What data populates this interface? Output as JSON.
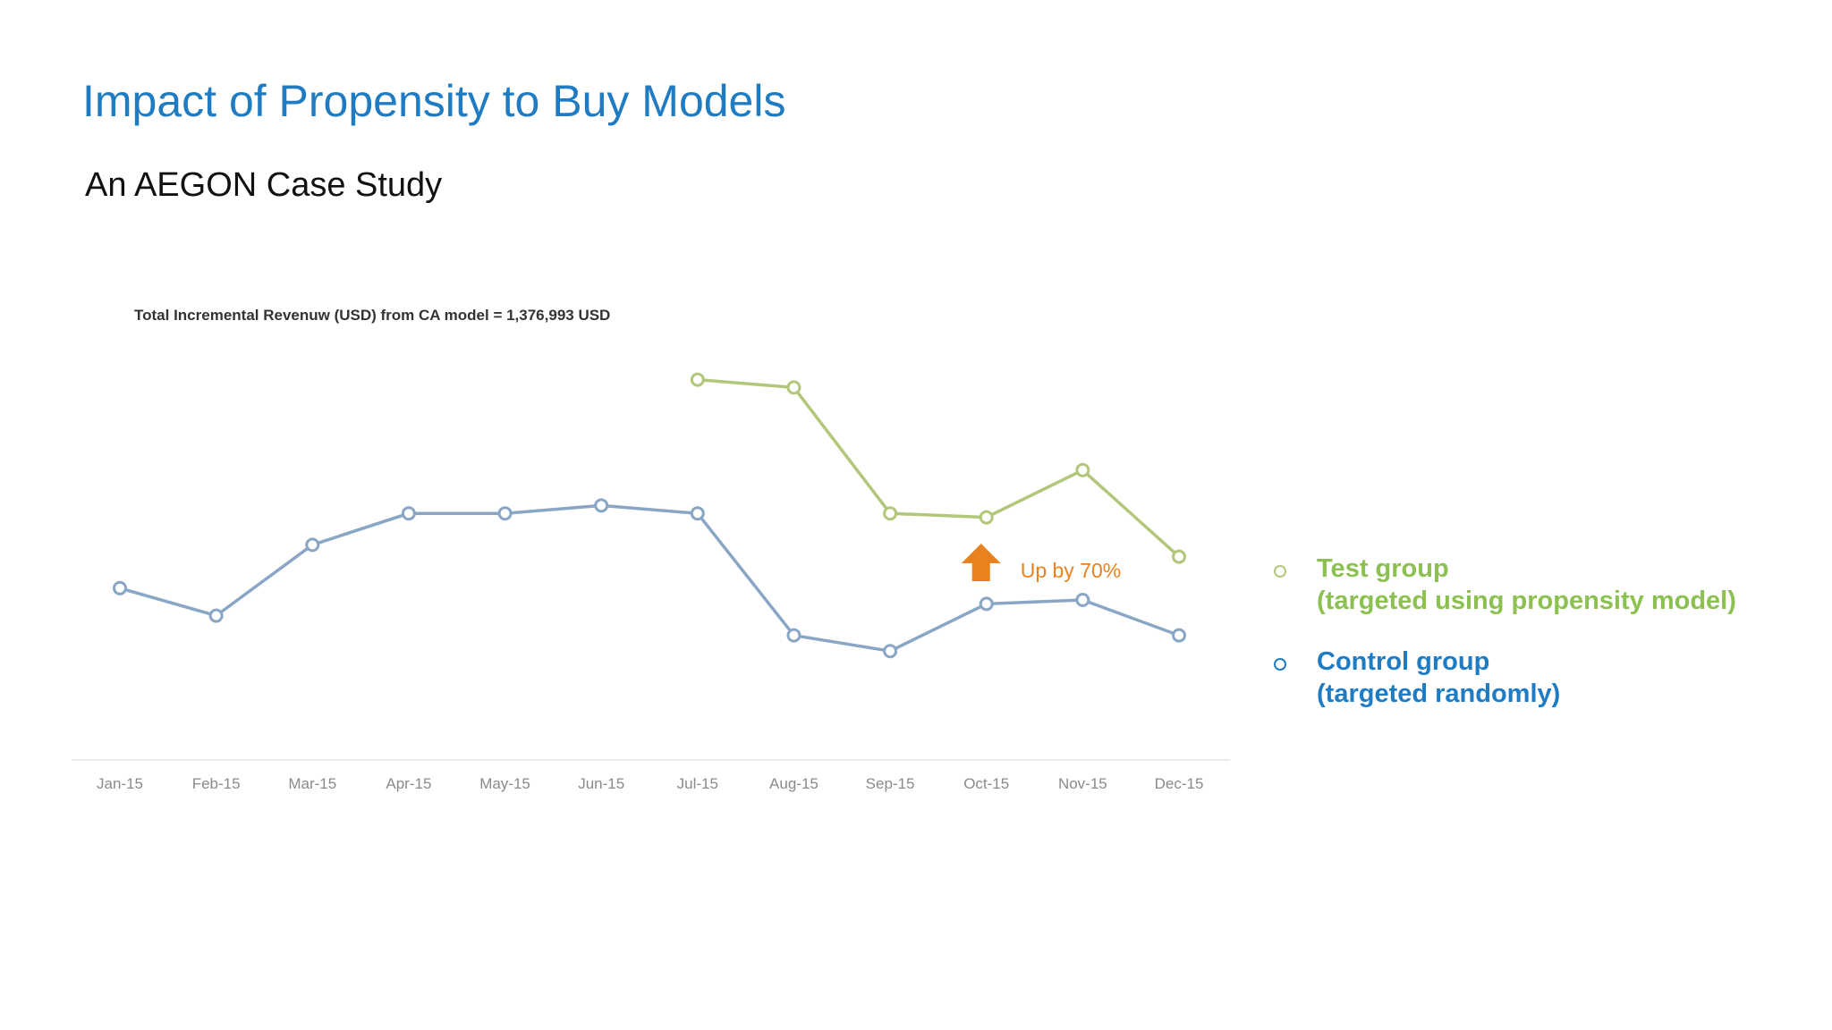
{
  "slide": {
    "title": "Impact of Propensity to Buy Models",
    "subtitle": "An AEGON Case Study"
  },
  "colors": {
    "title": "#1f7cc2",
    "test_series": "#b2c77a",
    "control_series": "#8aa6c6",
    "test_legend": "#8cc152",
    "control_legend": "#1f7cc2",
    "annotation": "#e8821e"
  },
  "chart_data": {
    "type": "line",
    "title": "Total Incremental Revenuw (USD) from CA model = 1,376,993 USD",
    "xlabel": "",
    "ylabel": "",
    "grid": false,
    "categories": [
      "Jan-15",
      "Feb-15",
      "Mar-15",
      "Apr-15",
      "May-15",
      "Jun-15",
      "Jul-15",
      "Aug-15",
      "Sep-15",
      "Oct-15",
      "Nov-15",
      "Dec-15"
    ],
    "ylim": [
      0,
      100
    ],
    "series": [
      {
        "key": "test",
        "values": [
          null,
          null,
          null,
          null,
          null,
          null,
          91,
          89,
          57,
          56,
          68,
          46
        ]
      },
      {
        "key": "control",
        "values": [
          38,
          31,
          49,
          57,
          57,
          59,
          57,
          26,
          22,
          34,
          35,
          26
        ]
      }
    ],
    "annotations": [
      {
        "text": "Up by 70%",
        "category": "Oct-15",
        "marker": "up-arrow"
      }
    ]
  },
  "legend": {
    "items": [
      {
        "key": "test",
        "label": "Test group",
        "detail": "(targeted using propensity model)"
      },
      {
        "key": "control",
        "label": "Control group",
        "detail": "(targeted randomly)"
      }
    ]
  }
}
